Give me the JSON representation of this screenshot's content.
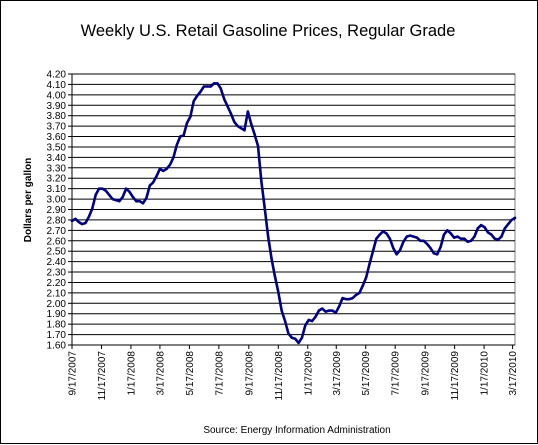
{
  "chart_data": {
    "type": "line",
    "title": "Weekly U.S. Retail Gasoline Prices, Regular Grade",
    "xlabel": "",
    "ylabel": "Dollars per gallon",
    "source": "Source:  Energy Information Administration",
    "ylim": [
      1.6,
      4.2
    ],
    "y_ticks": [
      "1.60",
      "1.70",
      "1.80",
      "1.90",
      "2.00",
      "2.10",
      "2.20",
      "2.30",
      "2.40",
      "2.50",
      "2.60",
      "2.70",
      "2.80",
      "2.90",
      "3.00",
      "3.10",
      "3.20",
      "3.30",
      "3.40",
      "3.50",
      "3.60",
      "3.70",
      "3.80",
      "3.90",
      "4.00",
      "4.10",
      "4.20"
    ],
    "x_tick_labels": [
      "9/17/2007",
      "11/17/2007",
      "1/17/2008",
      "3/17/2008",
      "5/17/2008",
      "7/17/2008",
      "9/17/2008",
      "11/17/2008",
      "1/17/2009",
      "3/17/2009",
      "5/17/2009",
      "7/17/2009",
      "9/17/2009",
      "11/17/2009",
      "1/17/2010",
      "3/17/2010"
    ],
    "grid": true,
    "line_color": "#000080",
    "series": [
      {
        "x": [
          "2007-09-17",
          "2007-09-24",
          "2007-10-01",
          "2007-10-08",
          "2007-10-15",
          "2007-10-22",
          "2007-10-29",
          "2007-11-05",
          "2007-11-12",
          "2007-11-19",
          "2007-11-26",
          "2007-12-03",
          "2007-12-10",
          "2007-12-17",
          "2007-12-24",
          "2007-12-31",
          "2008-01-07",
          "2008-01-14",
          "2008-01-21",
          "2008-01-28",
          "2008-02-04",
          "2008-02-11",
          "2008-02-18",
          "2008-02-25",
          "2008-03-03",
          "2008-03-10",
          "2008-03-17",
          "2008-03-24",
          "2008-03-31",
          "2008-04-07",
          "2008-04-14",
          "2008-04-21",
          "2008-04-28",
          "2008-05-05",
          "2008-05-12",
          "2008-05-19",
          "2008-05-26",
          "2008-06-02",
          "2008-06-09",
          "2008-06-16",
          "2008-06-23",
          "2008-06-30",
          "2008-07-07",
          "2008-07-14",
          "2008-07-21",
          "2008-07-28",
          "2008-08-04",
          "2008-08-11",
          "2008-08-18",
          "2008-08-25",
          "2008-09-01",
          "2008-09-08",
          "2008-09-15",
          "2008-09-22",
          "2008-09-29",
          "2008-10-06",
          "2008-10-13",
          "2008-10-20",
          "2008-10-27",
          "2008-11-03",
          "2008-11-10",
          "2008-11-17",
          "2008-11-24",
          "2008-12-01",
          "2008-12-08",
          "2008-12-15",
          "2008-12-22",
          "2008-12-29",
          "2009-01-05",
          "2009-01-12",
          "2009-01-19",
          "2009-01-26",
          "2009-02-02",
          "2009-02-09",
          "2009-02-16",
          "2009-02-23",
          "2009-03-02",
          "2009-03-09",
          "2009-03-16",
          "2009-03-23",
          "2009-03-30",
          "2009-04-06",
          "2009-04-13",
          "2009-04-20",
          "2009-04-27",
          "2009-05-04",
          "2009-05-11",
          "2009-05-18",
          "2009-05-25",
          "2009-06-01",
          "2009-06-08",
          "2009-06-15",
          "2009-06-22",
          "2009-06-29",
          "2009-07-06",
          "2009-07-13",
          "2009-07-20",
          "2009-07-27",
          "2009-08-03",
          "2009-08-10",
          "2009-08-17",
          "2009-08-24",
          "2009-08-31",
          "2009-09-07",
          "2009-09-14",
          "2009-09-21",
          "2009-09-28",
          "2009-10-05",
          "2009-10-12",
          "2009-10-19",
          "2009-10-26",
          "2009-11-02",
          "2009-11-09",
          "2009-11-16",
          "2009-11-23",
          "2009-11-30",
          "2009-12-07",
          "2009-12-14",
          "2009-12-21",
          "2009-12-28",
          "2010-01-04",
          "2010-01-11",
          "2010-01-18",
          "2010-01-25",
          "2010-02-01",
          "2010-02-08",
          "2010-02-15",
          "2010-02-22",
          "2010-03-01",
          "2010-03-08",
          "2010-03-15",
          "2010-03-22"
        ],
        "values": [
          2.79,
          2.81,
          2.78,
          2.76,
          2.77,
          2.83,
          2.91,
          3.04,
          3.1,
          3.1,
          3.08,
          3.04,
          3.0,
          2.99,
          2.98,
          3.02,
          3.1,
          3.07,
          3.02,
          2.98,
          2.98,
          2.96,
          3.01,
          3.13,
          3.16,
          3.22,
          3.29,
          3.27,
          3.29,
          3.33,
          3.4,
          3.52,
          3.6,
          3.61,
          3.73,
          3.79,
          3.94,
          3.99,
          4.03,
          4.08,
          4.08,
          4.08,
          4.11,
          4.11,
          4.06,
          3.96,
          3.89,
          3.82,
          3.74,
          3.7,
          3.68,
          3.66,
          3.84,
          3.72,
          3.62,
          3.51,
          3.17,
          2.91,
          2.64,
          2.43,
          2.26,
          2.11,
          1.93,
          1.83,
          1.71,
          1.67,
          1.66,
          1.62,
          1.67,
          1.79,
          1.84,
          1.83,
          1.87,
          1.93,
          1.95,
          1.92,
          1.93,
          1.93,
          1.91,
          1.97,
          2.05,
          2.04,
          2.04,
          2.05,
          2.08,
          2.1,
          2.17,
          2.25,
          2.38,
          2.5,
          2.62,
          2.66,
          2.69,
          2.67,
          2.62,
          2.53,
          2.47,
          2.51,
          2.59,
          2.64,
          2.65,
          2.64,
          2.63,
          2.6,
          2.6,
          2.57,
          2.53,
          2.48,
          2.47,
          2.54,
          2.66,
          2.7,
          2.67,
          2.63,
          2.64,
          2.62,
          2.62,
          2.59,
          2.6,
          2.64,
          2.72,
          2.75,
          2.73,
          2.68,
          2.66,
          2.62,
          2.61,
          2.64,
          2.72,
          2.76,
          2.8,
          2.82
        ]
      }
    ]
  }
}
